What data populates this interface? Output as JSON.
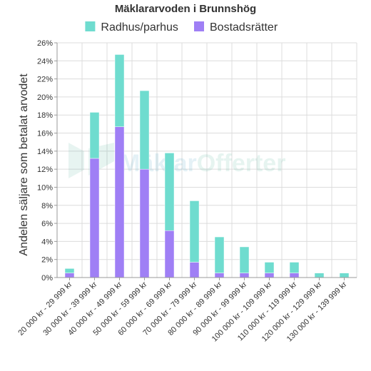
{
  "chart_data": {
    "type": "bar",
    "stacked": true,
    "title": "Mäklararvoden i Brunnshög",
    "ylabel": "Andelen säljare som betalat arvodet",
    "xlabel": "",
    "ylim": [
      0,
      26
    ],
    "ytick_step": 2,
    "ytick_suffix": "%",
    "grid": true,
    "legend_position": "top",
    "categories": [
      "20 000 kr - 29 999 kr",
      "30 000 kr - 39 999 kr",
      "40 000 kr - 49 999 kr",
      "50 000 kr - 59 999 kr",
      "60 000 kr - 69 999 kr",
      "70 000 kr - 79 999 kr",
      "80 000 kr - 89 999 kr",
      "90 000 kr - 99 999 kr",
      "100 000 kr - 109 999 kr",
      "110 000 kr - 119 999 kr",
      "120 000 kr - 129 999 kr",
      "130 000 kr - 139 999 kr"
    ],
    "series": [
      {
        "name": "Bostadsrätter",
        "color": "#9f7ff5",
        "values": [
          0.5,
          13.2,
          16.7,
          12.0,
          5.2,
          1.7,
          0.5,
          0.5,
          0.5,
          0.5,
          0,
          0
        ]
      },
      {
        "name": "Radhus/parhus",
        "color": "#6fdccf",
        "values": [
          0.5,
          5.1,
          8.0,
          8.7,
          8.6,
          6.8,
          4.0,
          2.9,
          1.2,
          1.2,
          0.5,
          0.5
        ]
      }
    ],
    "legend_order": [
      "Radhus/parhus",
      "Bostadsrätter"
    ]
  },
  "watermark": {
    "text_part1": "Mäklar",
    "text_part2": "Offerter"
  }
}
